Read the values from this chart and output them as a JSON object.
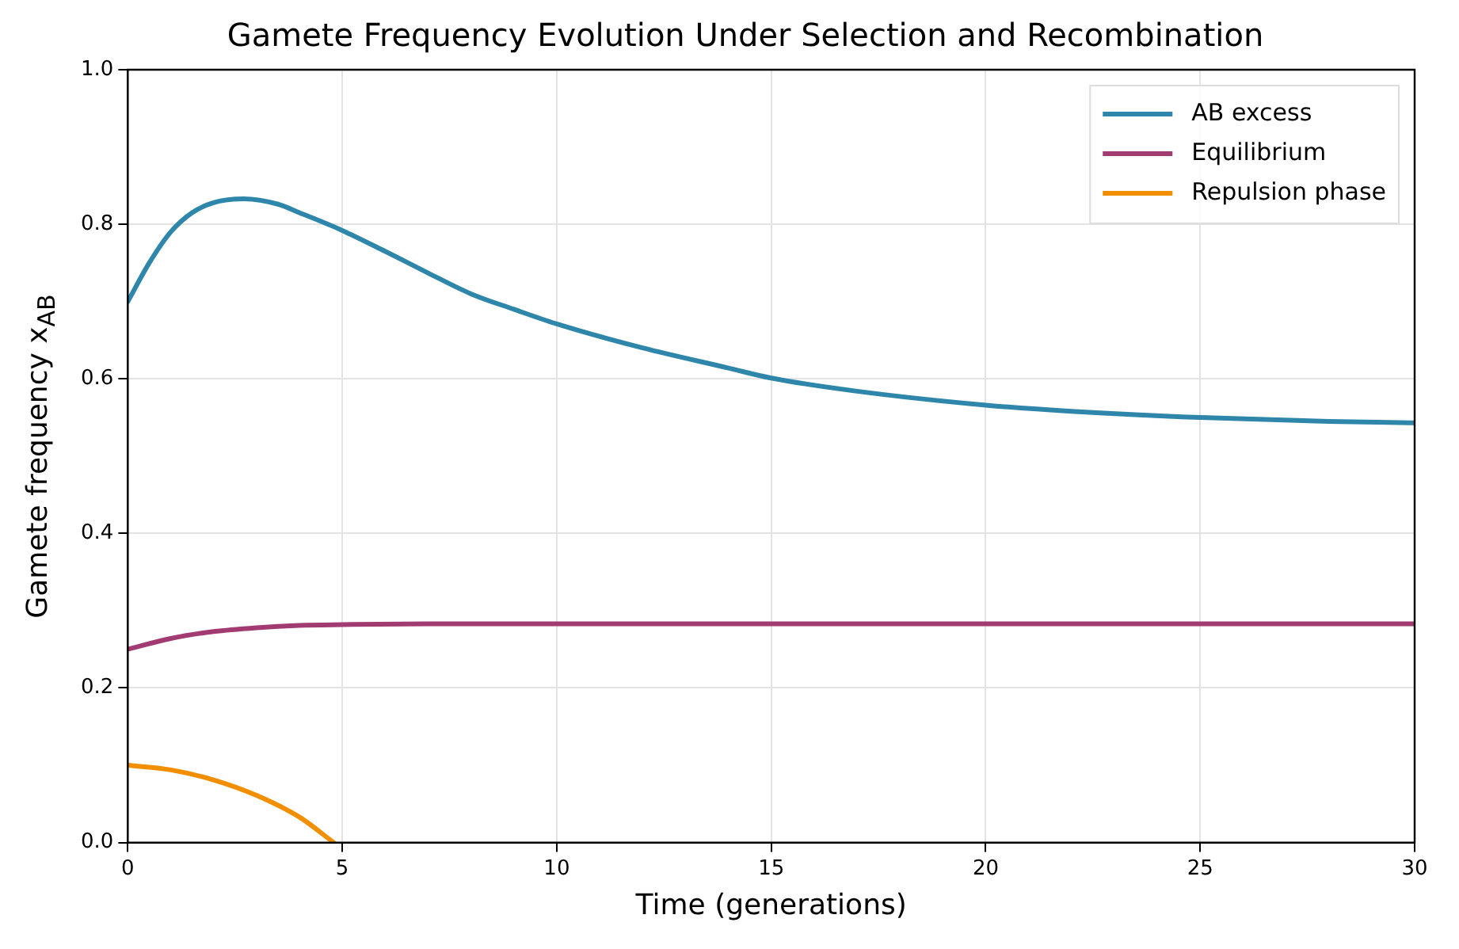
{
  "chart_data": {
    "type": "line",
    "title": "Gamete Frequency Evolution Under Selection and Recombination",
    "xlabel": "Time (generations)",
    "ylabel": "Gamete frequency x$_{AB}$",
    "xlim": [
      0,
      30
    ],
    "xticks": [
      0,
      5,
      10,
      15,
      20,
      25,
      30
    ],
    "ylim": [
      0,
      1.0
    ],
    "yticks": [
      {
        "value": 0,
        "label": "0.0"
      },
      {
        "value": 0.2,
        "label": "0.2"
      },
      {
        "value": 0.4,
        "label": "0.4"
      },
      {
        "value": 0.6,
        "label": "0.6"
      },
      {
        "value": 0.8,
        "label": "0.8"
      },
      {
        "value": 1.0,
        "label": "1.0"
      }
    ],
    "grid": true,
    "legend": "top right",
    "marker": "none",
    "line_style": "solid",
    "series": [
      {
        "name": "AB excess",
        "color": "#2e86ab",
        "x": [
          0,
          0.5,
          1,
          1.5,
          2,
          2.7,
          3.5,
          4,
          5,
          6,
          7,
          8,
          9,
          10,
          12,
          14,
          15,
          17,
          20,
          22,
          25,
          28,
          30
        ],
        "values": [
          0.7,
          0.75,
          0.79,
          0.815,
          0.828,
          0.833,
          0.826,
          0.815,
          0.792,
          0.765,
          0.737,
          0.71,
          0.69,
          0.671,
          0.64,
          0.614,
          0.601,
          0.584,
          0.566,
          0.558,
          0.55,
          0.545,
          0.543
        ]
      },
      {
        "name": "Equilibrium",
        "color": "#a23b72",
        "x": [
          0,
          1,
          2,
          3,
          4,
          5,
          7,
          30
        ],
        "values": [
          0.25,
          0.264,
          0.273,
          0.278,
          0.281,
          0.282,
          0.283,
          0.283
        ]
      },
      {
        "name": "Repulsion phase",
        "color": "#f18f01",
        "x": [
          0,
          1,
          2,
          3,
          4,
          4.8
        ],
        "values": [
          0.1,
          0.094,
          0.081,
          0.061,
          0.033,
          0.0
        ]
      }
    ]
  }
}
